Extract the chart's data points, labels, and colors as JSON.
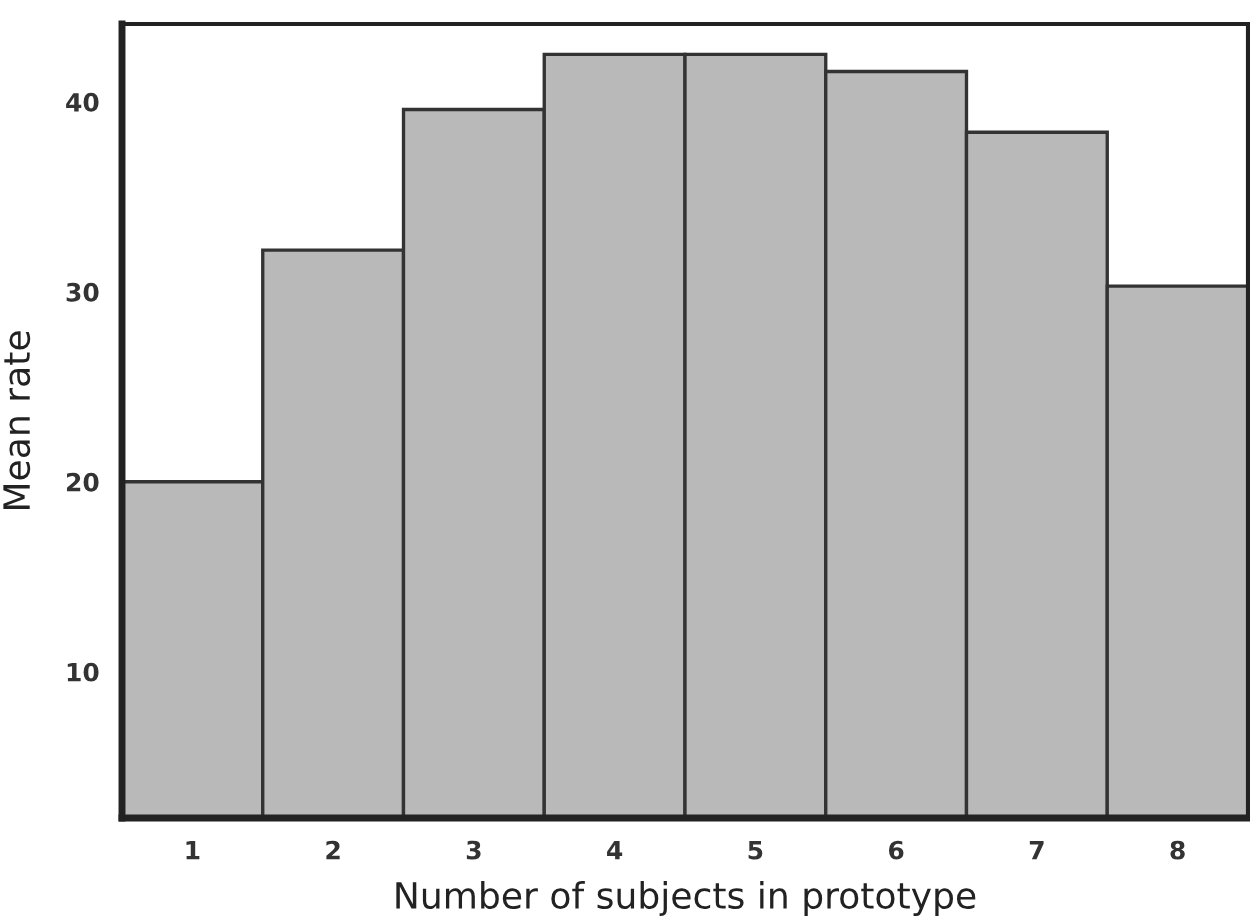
{
  "chart_data": {
    "type": "bar",
    "xlabel": "Number of subjects in prototype",
    "ylabel": "Mean rate",
    "categories": [
      "1",
      "2",
      "3",
      "4",
      "5",
      "6",
      "7",
      "8"
    ],
    "values": [
      20,
      32.2,
      39.6,
      42.5,
      42.5,
      41.6,
      38.4,
      30.3
    ],
    "color": "#b9b9b9",
    "ylim": [
      2.3,
      44.1
    ],
    "yticks": [
      10,
      20,
      30,
      40
    ],
    "grid": false
  }
}
